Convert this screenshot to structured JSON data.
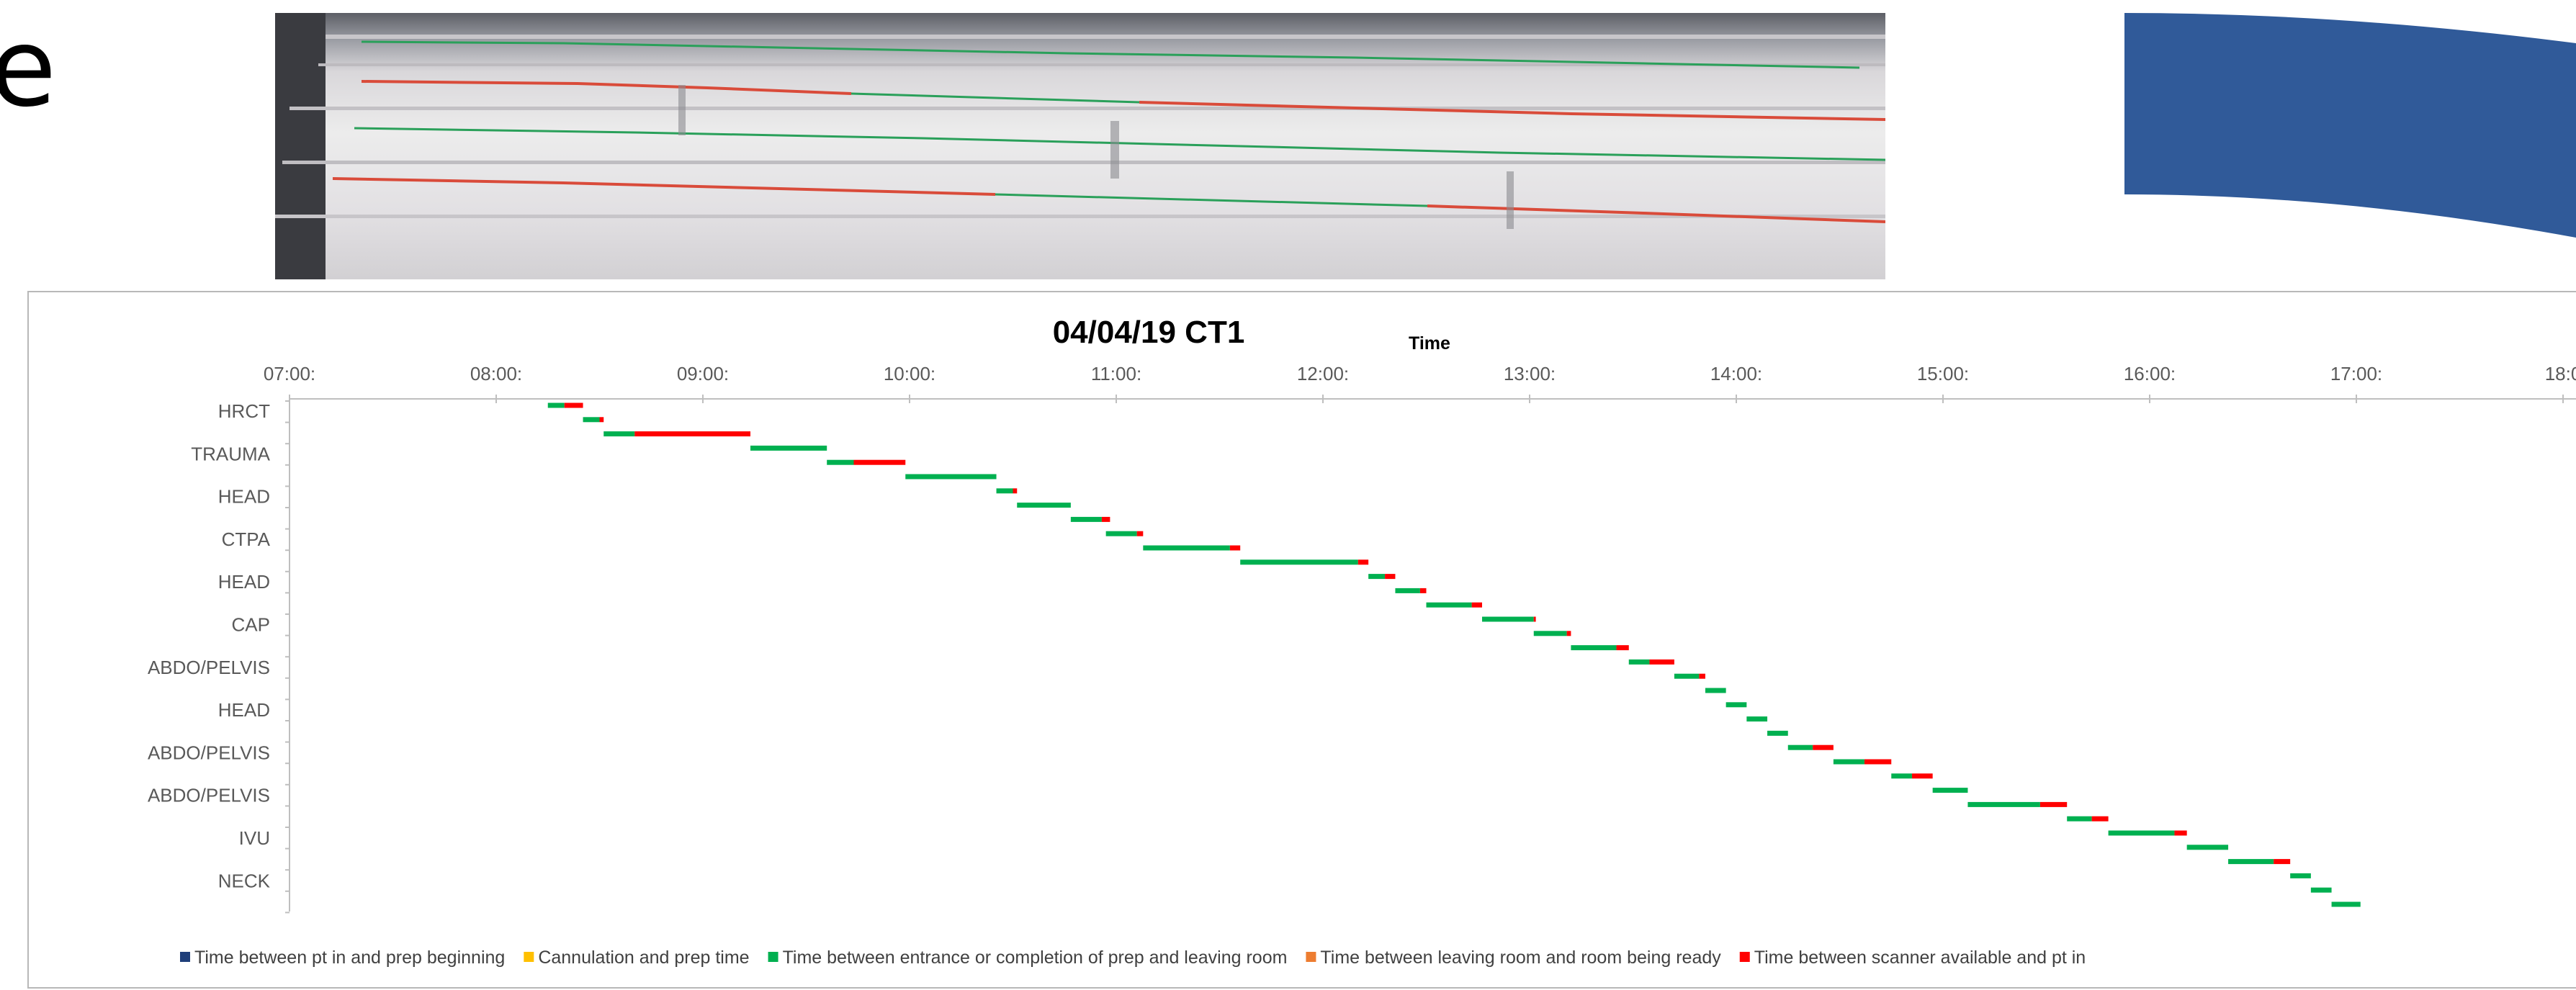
{
  "slide": {
    "partial_title_letter": "e"
  },
  "photo": {
    "caption": ""
  },
  "arrows": {
    "top_color": "#305a99",
    "bottom_color": "#4472c4"
  },
  "chart_data": {
    "type": "gantt",
    "title": "04/04/19 CT1",
    "xlabel": "Time",
    "x_ticks": [
      "07:00:",
      "08:00:",
      "09:00:",
      "10:00:",
      "11:00:",
      "12:00:",
      "13:00:",
      "14:00:",
      "15:00:",
      "16:00:",
      "17:00:",
      "18:0"
    ],
    "x_range_hours": [
      7,
      18
    ],
    "categories": [
      "HRCT",
      "TRAUMA",
      "HEAD",
      "CTPA",
      "HEAD",
      "CAP",
      "ABDO/PELVIS",
      "HEAD",
      "ABDO/PELVIS",
      "ABDO/PELVIS",
      "IVU",
      "NECK"
    ],
    "legend": [
      {
        "name": "Time between pt in and prep beginning",
        "color": "#1f3f7a"
      },
      {
        "name": "Cannulation and prep time",
        "color": "#ffc000"
      },
      {
        "name": "Time between entrance or completion of prep and leaving room",
        "color": "#00b050"
      },
      {
        "name": "Time between leaving room and room being ready",
        "color": "#ed7d31"
      },
      {
        "name": "Time between scanner available and pt in",
        "color": "#ff0000"
      }
    ],
    "rows": [
      {
        "segments": [
          [
            8.25,
            8.33,
            "green"
          ],
          [
            8.33,
            8.42,
            "red"
          ]
        ]
      },
      {
        "segments": [
          [
            8.42,
            8.5,
            "green"
          ],
          [
            8.5,
            8.52,
            "red"
          ]
        ]
      },
      {
        "segments": [
          [
            8.52,
            8.67,
            "green"
          ],
          [
            8.67,
            9.23,
            "red"
          ]
        ]
      },
      {
        "segments": [
          [
            9.23,
            9.6,
            "green"
          ]
        ]
      },
      {
        "segments": [
          [
            9.6,
            9.73,
            "green"
          ],
          [
            9.73,
            9.98,
            "red"
          ]
        ]
      },
      {
        "segments": [
          [
            9.98,
            10.42,
            "green"
          ]
        ]
      },
      {
        "segments": [
          [
            10.42,
            10.5,
            "green"
          ],
          [
            10.5,
            10.52,
            "red"
          ]
        ]
      },
      {
        "segments": [
          [
            10.52,
            10.78,
            "green"
          ]
        ]
      },
      {
        "segments": [
          [
            10.78,
            10.93,
            "green"
          ],
          [
            10.93,
            10.97,
            "red"
          ]
        ]
      },
      {
        "segments": [
          [
            10.95,
            11.1,
            "green"
          ],
          [
            11.1,
            11.13,
            "red"
          ]
        ]
      },
      {
        "segments": [
          [
            11.13,
            11.55,
            "green"
          ],
          [
            11.55,
            11.6,
            "red"
          ]
        ]
      },
      {
        "segments": [
          [
            11.6,
            12.17,
            "green"
          ],
          [
            12.17,
            12.22,
            "red"
          ]
        ]
      },
      {
        "segments": [
          [
            12.22,
            12.3,
            "green"
          ],
          [
            12.3,
            12.35,
            "red"
          ]
        ]
      },
      {
        "segments": [
          [
            12.35,
            12.47,
            "green"
          ],
          [
            12.47,
            12.5,
            "red"
          ]
        ]
      },
      {
        "segments": [
          [
            12.5,
            12.72,
            "green"
          ],
          [
            12.72,
            12.77,
            "red"
          ]
        ]
      },
      {
        "segments": [
          [
            12.77,
            13.02,
            "green"
          ],
          [
            13.02,
            13.03,
            "red"
          ]
        ]
      },
      {
        "segments": [
          [
            13.02,
            13.18,
            "green"
          ],
          [
            13.18,
            13.2,
            "red"
          ]
        ]
      },
      {
        "segments": [
          [
            13.2,
            13.42,
            "green"
          ],
          [
            13.42,
            13.48,
            "red"
          ]
        ]
      },
      {
        "segments": [
          [
            13.48,
            13.58,
            "green"
          ],
          [
            13.58,
            13.7,
            "red"
          ]
        ]
      },
      {
        "segments": [
          [
            13.7,
            13.82,
            "green"
          ],
          [
            13.82,
            13.85,
            "red"
          ]
        ]
      },
      {
        "segments": [
          [
            13.85,
            13.95,
            "green"
          ]
        ]
      },
      {
        "segments": [
          [
            13.95,
            14.05,
            "green"
          ]
        ]
      },
      {
        "segments": [
          [
            14.05,
            14.15,
            "green"
          ]
        ]
      },
      {
        "segments": [
          [
            14.15,
            14.25,
            "green"
          ]
        ]
      },
      {
        "segments": [
          [
            14.25,
            14.37,
            "green"
          ],
          [
            14.37,
            14.47,
            "red"
          ]
        ]
      },
      {
        "segments": [
          [
            14.47,
            14.62,
            "green"
          ],
          [
            14.62,
            14.75,
            "red"
          ]
        ]
      },
      {
        "segments": [
          [
            14.75,
            14.85,
            "green"
          ],
          [
            14.85,
            14.95,
            "red"
          ]
        ]
      },
      {
        "segments": [
          [
            14.95,
            15.12,
            "green"
          ]
        ]
      },
      {
        "segments": [
          [
            15.12,
            15.47,
            "green"
          ],
          [
            15.47,
            15.6,
            "red"
          ]
        ]
      },
      {
        "segments": [
          [
            15.6,
            15.72,
            "green"
          ],
          [
            15.72,
            15.8,
            "red"
          ]
        ]
      },
      {
        "segments": [
          [
            15.8,
            16.12,
            "green"
          ],
          [
            16.12,
            16.18,
            "red"
          ]
        ]
      },
      {
        "segments": [
          [
            16.18,
            16.38,
            "green"
          ]
        ]
      },
      {
        "segments": [
          [
            16.38,
            16.6,
            "green"
          ],
          [
            16.6,
            16.68,
            "red"
          ]
        ]
      },
      {
        "segments": [
          [
            16.68,
            16.78,
            "green"
          ]
        ]
      },
      {
        "segments": [
          [
            16.78,
            16.88,
            "green"
          ]
        ]
      },
      {
        "segments": [
          [
            16.88,
            17.02,
            "green"
          ]
        ]
      }
    ]
  }
}
